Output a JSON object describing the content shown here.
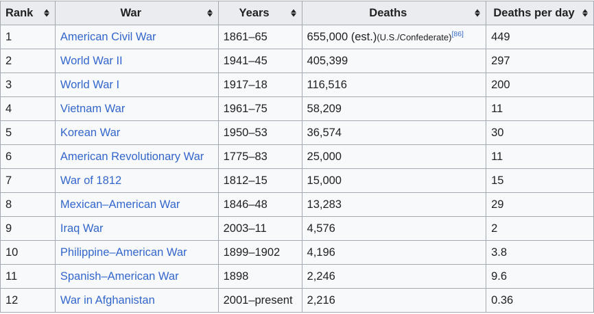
{
  "headers": [
    "Rank",
    "War",
    "Years",
    "Deaths",
    "Deaths per day"
  ],
  "rows": [
    {
      "rank": "1",
      "war": "American Civil War",
      "years": "1861–65",
      "deaths": "655,000 (est.)",
      "note": "(U.S./Confederate)",
      "ref": "[86]",
      "per_day": "449"
    },
    {
      "rank": "2",
      "war": "World War II",
      "years": "1941–45",
      "deaths": "405,399",
      "per_day": "297"
    },
    {
      "rank": "3",
      "war": "World War I",
      "years": "1917–18",
      "deaths": "116,516",
      "per_day": "200"
    },
    {
      "rank": "4",
      "war": "Vietnam War",
      "years": "1961–75",
      "deaths": "58,209",
      "per_day": "11"
    },
    {
      "rank": "5",
      "war": "Korean War",
      "years": "1950–53",
      "deaths": "36,574",
      "per_day": "30"
    },
    {
      "rank": "6",
      "war": "American Revolutionary War",
      "years": "1775–83",
      "deaths": "25,000",
      "per_day": "11"
    },
    {
      "rank": "7",
      "war": "War of 1812",
      "years": "1812–15",
      "deaths": "15,000",
      "per_day": "15"
    },
    {
      "rank": "8",
      "war": "Mexican–American War",
      "years": "1846–48",
      "deaths": "13,283",
      "per_day": "29"
    },
    {
      "rank": "9",
      "war": "Iraq War",
      "years": "2003–11",
      "deaths": "4,576",
      "per_day": "2"
    },
    {
      "rank": "10",
      "war": "Philippine–American War",
      "years": "1899–1902",
      "deaths": "4,196",
      "per_day": "3.8"
    },
    {
      "rank": "11",
      "war": "Spanish–American War",
      "years": "1898",
      "deaths": "2,246",
      "per_day": "9.6"
    },
    {
      "rank": "12",
      "war": "War in Afghanistan",
      "years": "2001–present",
      "deaths": "2,216",
      "per_day": "0.36"
    }
  ]
}
